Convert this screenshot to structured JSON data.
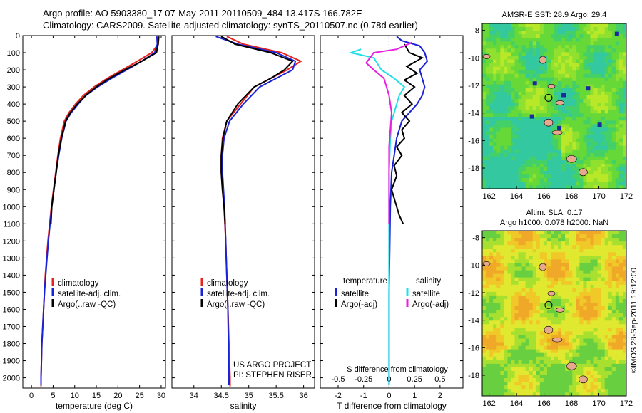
{
  "title_line1": "Argo profile: AO 5903380_17 07-May-2011 20110509_484 13.417S 166.782E",
  "title_line2": "Climatology: CARS2009. Satellite-adjusted climatology: synTS_20110507.nc (0.78d earlier)",
  "project_line1": "US ARGO PROJECT",
  "project_line2": "PI: STEPHEN RISER",
  "footer_stamp": "©IMOS 28-Sep-2011 19:12:00",
  "map_sst": {
    "title": "AMSR-E SST: 28.9 Argo: 29.4"
  },
  "map_sla": {
    "title_line1": "Altim. SLA: 0.17",
    "title_line2": "Argo h1000: 0.078 h2000: NaN"
  },
  "colors": {
    "climatology": "#e8231f",
    "satellite": "#1a22d8",
    "argo": "#000000",
    "sat_salinity": "#22e0e8",
    "argo_salinity": "#e81fe0"
  },
  "chart_data": [
    {
      "type": "line",
      "xlabel": "temperature (deg C)",
      "xticks": [
        "0",
        "5",
        "10",
        "15",
        "20",
        "25",
        "30"
      ],
      "xlim": [
        -2,
        31
      ],
      "ylabel": "",
      "yticks": [
        "0",
        "100",
        "200",
        "300",
        "400",
        "500",
        "600",
        "700",
        "800",
        "900",
        "1000",
        "1100",
        "1200",
        "1300",
        "1400",
        "1500",
        "1600",
        "1700",
        "1800",
        "1900",
        "2000"
      ],
      "ylim": [
        2060,
        0
      ],
      "legend": [
        "climatology",
        "satellite-adj. clim.",
        "Argo(..raw -QC)"
      ],
      "series": [
        {
          "name": "climatology",
          "points": [
            [
              29.5,
              5
            ],
            [
              29.3,
              50
            ],
            [
              27.8,
              100
            ],
            [
              24.5,
              150
            ],
            [
              21,
              200
            ],
            [
              17.5,
              250
            ],
            [
              14.5,
              300
            ],
            [
              12,
              350
            ],
            [
              10.2,
              400
            ],
            [
              8.7,
              450
            ],
            [
              7.6,
              500
            ],
            [
              6.7,
              600
            ],
            [
              6.1,
              700
            ],
            [
              5.6,
              800
            ],
            [
              5.1,
              900
            ],
            [
              4.6,
              1000
            ],
            [
              4.2,
              1100
            ],
            [
              3.8,
              1200
            ],
            [
              3.5,
              1300
            ],
            [
              3.2,
              1400
            ],
            [
              3,
              1500
            ],
            [
              2.8,
              1600
            ],
            [
              2.6,
              1700
            ],
            [
              2.4,
              1800
            ],
            [
              2.3,
              1900
            ],
            [
              2.2,
              2000
            ],
            [
              2.2,
              2050
            ]
          ]
        },
        {
          "name": "satellite-adj. clim.",
          "points": [
            [
              29.0,
              5
            ],
            [
              29.1,
              50
            ],
            [
              28.5,
              100
            ],
            [
              25.5,
              150
            ],
            [
              22,
              200
            ],
            [
              18.5,
              250
            ],
            [
              15.3,
              300
            ],
            [
              12.6,
              350
            ],
            [
              10.8,
              400
            ],
            [
              9.2,
              450
            ],
            [
              8.0,
              500
            ],
            [
              7,
              600
            ],
            [
              6.3,
              700
            ],
            [
              5.7,
              800
            ],
            [
              5.2,
              900
            ],
            [
              4.7,
              1000
            ],
            [
              4.3,
              1100
            ],
            [
              3.9,
              1200
            ],
            [
              3.6,
              1300
            ],
            [
              3.3,
              1400
            ],
            [
              3.0,
              1500
            ],
            [
              2.8,
              1600
            ],
            [
              2.6,
              1700
            ],
            [
              2.4,
              1800
            ],
            [
              2.3,
              1900
            ],
            [
              2.2,
              2000
            ],
            [
              2.2,
              2040
            ]
          ]
        },
        {
          "name": "Argo(..raw -QC)",
          "points": [
            [
              29.4,
              5
            ],
            [
              29.3,
              50
            ],
            [
              28.9,
              100
            ],
            [
              25.5,
              150
            ],
            [
              21.6,
              200
            ],
            [
              18,
              250
            ],
            [
              15,
              300
            ],
            [
              12.5,
              350
            ],
            [
              10.6,
              400
            ],
            [
              9,
              450
            ],
            [
              7.9,
              500
            ],
            [
              6.9,
              600
            ],
            [
              6.2,
              700
            ],
            [
              5.7,
              800
            ],
            [
              5.2,
              900
            ],
            [
              4.7,
              1000
            ],
            [
              4.5,
              1100
            ]
          ]
        }
      ]
    },
    {
      "type": "line",
      "xlabel": "salinity",
      "xticks": [
        "34",
        "34.5",
        "35",
        "35.5",
        "36"
      ],
      "xvals": [
        34,
        34.5,
        35,
        35.5,
        36
      ],
      "xlim": [
        33.6,
        36.2
      ],
      "yticks": [],
      "ylim": [
        2060,
        0
      ],
      "legend": [
        "climatology",
        "satellite-adj. clim.",
        "Argo(..raw -QC)"
      ],
      "series": [
        {
          "name": "climatology",
          "points": [
            [
              34.6,
              5
            ],
            [
              34.9,
              50
            ],
            [
              35.6,
              100
            ],
            [
              35.95,
              150
            ],
            [
              35.7,
              200
            ],
            [
              35.4,
              250
            ],
            [
              35.1,
              300
            ],
            [
              34.85,
              400
            ],
            [
              34.6,
              500
            ],
            [
              34.52,
              600
            ],
            [
              34.5,
              700
            ],
            [
              34.5,
              800
            ],
            [
              34.52,
              900
            ],
            [
              34.55,
              1000
            ],
            [
              34.58,
              1200
            ],
            [
              34.6,
              1400
            ],
            [
              34.62,
              1600
            ],
            [
              34.64,
              1800
            ],
            [
              34.66,
              2000
            ],
            [
              34.66,
              2050
            ]
          ]
        },
        {
          "name": "satellite-adj. clim.",
          "points": [
            [
              34.4,
              5
            ],
            [
              34.8,
              50
            ],
            [
              35.5,
              100
            ],
            [
              35.85,
              150
            ],
            [
              35.8,
              200
            ],
            [
              35.5,
              250
            ],
            [
              35.2,
              300
            ],
            [
              34.9,
              400
            ],
            [
              34.65,
              500
            ],
            [
              34.55,
              600
            ],
            [
              34.52,
              700
            ],
            [
              34.52,
              800
            ],
            [
              34.54,
              900
            ],
            [
              34.56,
              1000
            ],
            [
              34.58,
              1200
            ],
            [
              34.6,
              1400
            ],
            [
              34.62,
              1600
            ],
            [
              34.63,
              1800
            ],
            [
              34.64,
              2000
            ],
            [
              34.64,
              2040
            ]
          ]
        },
        {
          "name": "Argo(..raw -QC)",
          "points": [
            [
              34.5,
              5
            ],
            [
              34.75,
              50
            ],
            [
              35.4,
              100
            ],
            [
              35.8,
              150
            ],
            [
              35.65,
              200
            ],
            [
              35.4,
              250
            ],
            [
              35.1,
              300
            ],
            [
              34.8,
              400
            ],
            [
              34.6,
              500
            ],
            [
              34.53,
              600
            ],
            [
              34.5,
              700
            ],
            [
              34.5,
              800
            ],
            [
              34.52,
              900
            ],
            [
              34.55,
              1000
            ],
            [
              34.57,
              1100
            ]
          ]
        }
      ]
    },
    {
      "type": "line",
      "xlabel": "T difference from climatology",
      "xticks": [
        "-2",
        "-1",
        "0",
        "1",
        "2"
      ],
      "xvals": [
        -2,
        -1,
        0,
        1,
        2
      ],
      "top_xlabel": "S difference from climatology",
      "top_xticks": [
        "-0.5",
        "-0.25",
        "0",
        "0.25",
        "0.5"
      ],
      "top_xvals": [
        -2,
        -1,
        0,
        1,
        2
      ],
      "xlim": [
        -2.7,
        2.9
      ],
      "yticks": [],
      "ylim": [
        2060,
        0
      ],
      "legend_left_title": "temperature",
      "legend_right_title": "salinity",
      "legend_left": [
        "satellite",
        "Argo(-adj)"
      ],
      "legend_right": [
        "satellite",
        "Argo(-adj)"
      ],
      "series": [
        {
          "name": "temperature satellite",
          "color_key": "satellite",
          "points": [
            [
              0.3,
              5
            ],
            [
              0.5,
              30
            ],
            [
              1.2,
              60
            ],
            [
              1.4,
              100
            ],
            [
              1.5,
              150
            ],
            [
              1.2,
              200
            ],
            [
              1.3,
              250
            ],
            [
              1.4,
              300
            ],
            [
              1.3,
              350
            ],
            [
              1.1,
              400
            ],
            [
              0.8,
              450
            ],
            [
              0.5,
              500
            ],
            [
              0.3,
              600
            ],
            [
              0.2,
              700
            ],
            [
              0.1,
              800
            ],
            [
              0.05,
              1000
            ],
            [
              0.0,
              1500
            ],
            [
              0.0,
              2040
            ]
          ]
        },
        {
          "name": "temperature Argo(-adj)",
          "color_key": "argo",
          "points": [
            [
              0.6,
              50
            ],
            [
              0.8,
              100
            ],
            [
              1.3,
              130
            ],
            [
              0.7,
              180
            ],
            [
              1.1,
              220
            ],
            [
              0.6,
              260
            ],
            [
              1.0,
              300
            ],
            [
              0.6,
              350
            ],
            [
              0.9,
              400
            ],
            [
              0.5,
              450
            ],
            [
              0.8,
              500
            ],
            [
              0.5,
              550
            ],
            [
              0.6,
              600
            ],
            [
              0.3,
              650
            ],
            [
              0.5,
              700
            ],
            [
              0.2,
              760
            ],
            [
              0.3,
              820
            ],
            [
              0.1,
              900
            ],
            [
              0.3,
              1000
            ],
            [
              0.4,
              1050
            ],
            [
              0.55,
              1100
            ]
          ]
        },
        {
          "name": "salinity satellite",
          "color_key": "sat_salinity",
          "points": [
            [
              -1.1,
              80
            ],
            [
              -1.5,
              100
            ],
            [
              -0.6,
              130
            ],
            [
              -0.3,
              200
            ],
            [
              0.2,
              250
            ],
            [
              0.6,
              300
            ],
            [
              0.4,
              350
            ],
            [
              0.2,
              450
            ],
            [
              0.1,
              500
            ],
            [
              0.05,
              600
            ],
            [
              0.0,
              800
            ],
            [
              0.0,
              2040
            ]
          ]
        },
        {
          "name": "salinity Argo(-adj)",
          "color_key": "argo_salinity",
          "points": [
            [
              0.9,
              40
            ],
            [
              0.3,
              80
            ],
            [
              -0.6,
              100
            ],
            [
              -0.9,
              160
            ],
            [
              -0.6,
              200
            ],
            [
              -0.2,
              250
            ],
            [
              0.0,
              350
            ],
            [
              0.1,
              450
            ],
            [
              0.05,
              550
            ],
            [
              0.0,
              650
            ],
            [
              0.0,
              800
            ],
            [
              0.0,
              1100
            ]
          ]
        }
      ]
    },
    {
      "type": "heatmap",
      "title": "AMSR-E SST: 28.9 Argo: 29.4",
      "xticks": [
        "162",
        "164",
        "166",
        "168",
        "170",
        "172"
      ],
      "yticks": [
        "-8",
        "-10",
        "-12",
        "-14",
        "-16",
        "-18"
      ],
      "xlim": [
        161.5,
        172
      ],
      "ylim": [
        -19.5,
        -7.5
      ]
    },
    {
      "type": "heatmap",
      "title": "Altim. SLA: 0.17",
      "subtitle": "Argo h1000: 0.078 h2000: NaN",
      "xticks": [
        "162",
        "164",
        "166",
        "168",
        "170",
        "172"
      ],
      "yticks": [
        "-8",
        "-10",
        "-12",
        "-14",
        "-16",
        "-18"
      ],
      "xlim": [
        161.5,
        172
      ],
      "ylim": [
        -19.5,
        -7.5
      ]
    }
  ]
}
